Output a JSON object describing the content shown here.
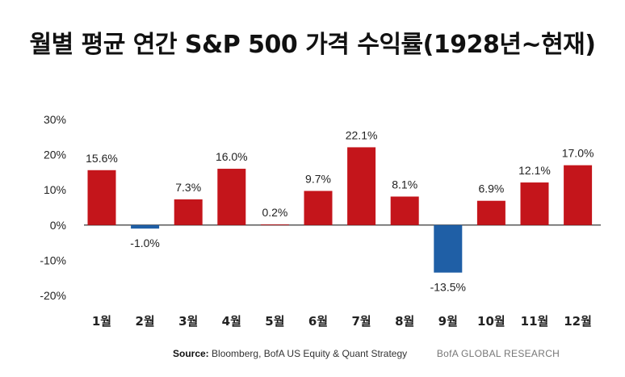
{
  "colors": {
    "positive": "#c4151b",
    "negative": "#1f5fa6",
    "axis": "#222222"
  },
  "chart_data": {
    "type": "bar",
    "title": "월별 평균 연간 S&P 500 가격 수익률(1928년~현재)",
    "xlabel": "",
    "ylabel": "",
    "categories": [
      "1월",
      "2월",
      "3월",
      "4월",
      "5월",
      "6월",
      "7월",
      "8월",
      "9월",
      "10월",
      "11월",
      "12월"
    ],
    "values": [
      15.6,
      -1.0,
      7.3,
      16.0,
      0.2,
      9.7,
      22.1,
      8.1,
      -13.5,
      6.9,
      12.1,
      17.0
    ],
    "value_labels": [
      "15.6%",
      "-1.0%",
      "7.3%",
      "16.0%",
      "0.2%",
      "9.7%",
      "22.1%",
      "8.1%",
      "-13.5%",
      "6.9%",
      "12.1%",
      "17.0%"
    ],
    "ylim": [
      -20,
      30
    ],
    "yticks": [
      30,
      20,
      10,
      0,
      -10,
      -20
    ],
    "ytick_labels": [
      "30%",
      "20%",
      "10%",
      "0%",
      "-10%",
      "-20%"
    ],
    "grid": false,
    "legend": "none"
  },
  "footer": {
    "source_label": "Source:",
    "source_text": "Bloomberg, BofA US Equity & Quant Strategy",
    "brand": "BofA GLOBAL RESEARCH"
  }
}
